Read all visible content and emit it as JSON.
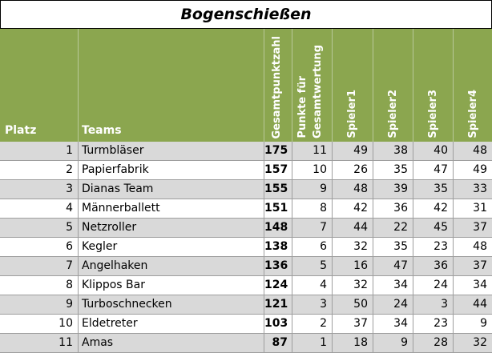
{
  "title": "Bogenschießen",
  "header": {
    "platz": "Platz",
    "teams": "Teams",
    "gesamtpunktzahl": "Gesamtpunktzahl",
    "punkte_line1": "Punkte für",
    "punkte_line2": "Gesamtwertung",
    "spieler1": "Spieler1",
    "spieler2": "Spieler2",
    "spieler3": "Spieler3",
    "spieler4": "Spieler4"
  },
  "rows": [
    {
      "platz": "1",
      "team": "Turmbläser",
      "gesamt": "175",
      "punkte": "11",
      "s1": "49",
      "s2": "38",
      "s3": "40",
      "s4": "48"
    },
    {
      "platz": "2",
      "team": "Papierfabrik",
      "gesamt": "157",
      "punkte": "10",
      "s1": "26",
      "s2": "35",
      "s3": "47",
      "s4": "49"
    },
    {
      "platz": "3",
      "team": "Dianas Team",
      "gesamt": "155",
      "punkte": "9",
      "s1": "48",
      "s2": "39",
      "s3": "35",
      "s4": "33"
    },
    {
      "platz": "4",
      "team": "Männerballett",
      "gesamt": "151",
      "punkte": "8",
      "s1": "42",
      "s2": "36",
      "s3": "42",
      "s4": "31"
    },
    {
      "platz": "5",
      "team": "Netzroller",
      "gesamt": "148",
      "punkte": "7",
      "s1": "44",
      "s2": "22",
      "s3": "45",
      "s4": "37"
    },
    {
      "platz": "6",
      "team": "Kegler",
      "gesamt": "138",
      "punkte": "6",
      "s1": "32",
      "s2": "35",
      "s3": "23",
      "s4": "48"
    },
    {
      "platz": "7",
      "team": "Angelhaken",
      "gesamt": "136",
      "punkte": "5",
      "s1": "16",
      "s2": "47",
      "s3": "36",
      "s4": "37"
    },
    {
      "platz": "8",
      "team": "Klippos Bar",
      "gesamt": "124",
      "punkte": "4",
      "s1": "32",
      "s2": "34",
      "s3": "24",
      "s4": "34"
    },
    {
      "platz": "9",
      "team": "Turboschnecken",
      "gesamt": "121",
      "punkte": "3",
      "s1": "50",
      "s2": "24",
      "s3": "3",
      "s4": "44"
    },
    {
      "platz": "10",
      "team": "Eldetreter",
      "gesamt": "103",
      "punkte": "2",
      "s1": "37",
      "s2": "34",
      "s3": "23",
      "s4": "9"
    },
    {
      "platz": "11",
      "team": "Amas",
      "gesamt": "87",
      "punkte": "1",
      "s1": "18",
      "s2": "9",
      "s3": "28",
      "s4": "32"
    }
  ]
}
